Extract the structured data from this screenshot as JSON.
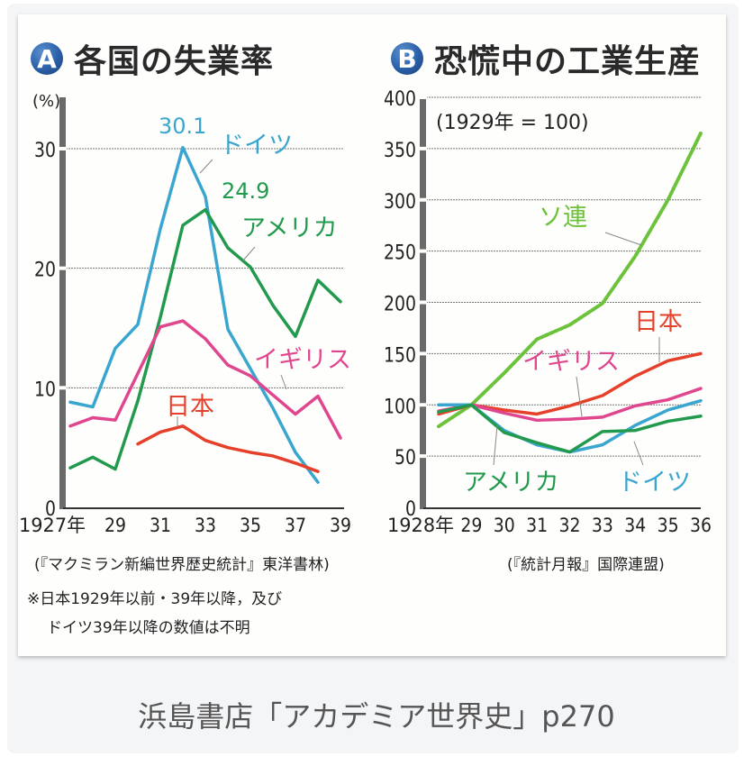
{
  "caption": "浜島書店「アカデミア世界史」p270",
  "chart_data": [
    {
      "id": "A",
      "type": "line",
      "badge": "A",
      "title": "各国の失業率",
      "ylabel": "(%)",
      "ylim": [
        0,
        33
      ],
      "yticks": [
        0,
        10,
        20,
        30
      ],
      "x": [
        1927,
        1928,
        1929,
        1930,
        1931,
        1932,
        1933,
        1934,
        1935,
        1936,
        1937,
        1938,
        1939
      ],
      "xlim": [
        1927,
        1939
      ],
      "xtick_labels": [
        {
          "x": 1927,
          "label": "1927年"
        },
        {
          "x": 1929,
          "label": "29"
        },
        {
          "x": 1931,
          "label": "31"
        },
        {
          "x": 1933,
          "label": "33"
        },
        {
          "x": 1935,
          "label": "35"
        },
        {
          "x": 1937,
          "label": "37"
        },
        {
          "x": 1939,
          "label": "39"
        }
      ],
      "grid": true,
      "series": [
        {
          "name": "ドイツ",
          "color": "#3aa6d0",
          "values": [
            8.8,
            8.4,
            13.3,
            15.3,
            23.3,
            30.1,
            26.0,
            14.9,
            11.6,
            8.3,
            4.6,
            2.1,
            null
          ]
        },
        {
          "name": "アメリカ",
          "color": "#229a4e",
          "values": [
            3.3,
            4.2,
            3.2,
            8.9,
            15.9,
            23.6,
            24.9,
            21.7,
            20.1,
            16.9,
            14.3,
            19.0,
            17.2
          ]
        },
        {
          "name": "イギリス",
          "color": "#e0468e",
          "values": [
            6.8,
            7.5,
            7.3,
            11.2,
            15.1,
            15.6,
            14.1,
            11.9,
            11.0,
            9.4,
            7.8,
            9.3,
            5.8
          ]
        },
        {
          "name": "日本",
          "color": "#e6402a",
          "values": [
            null,
            null,
            null,
            5.3,
            6.3,
            6.8,
            5.6,
            5.0,
            4.6,
            4.3,
            3.7,
            3.0,
            null
          ]
        }
      ],
      "annotations": [
        {
          "text": "30.1",
          "series": "ドイツ",
          "color": "#3aa6d0"
        },
        {
          "text": "24.9",
          "series": "アメリカ",
          "color": "#229a4e"
        }
      ],
      "source": "(『マクミラン新編世界歴史統計』東洋書林)",
      "notes": [
        "※日本1929年以前・39年以降，及び",
        "ドイツ39年以降の数値は不明"
      ]
    },
    {
      "id": "B",
      "type": "line",
      "badge": "B",
      "title": "恐慌中の工業生産",
      "subtitle": "(1929年 = 100)",
      "ylim": [
        0,
        400
      ],
      "yticks": [
        0,
        50,
        100,
        150,
        200,
        250,
        300,
        350,
        400
      ],
      "x": [
        1928,
        1929,
        1930,
        1931,
        1932,
        1933,
        1934,
        1935,
        1936
      ],
      "xlim": [
        1928,
        1936
      ],
      "xtick_labels": [
        {
          "x": 1928,
          "label": "1928年"
        },
        {
          "x": 1929,
          "label": "29"
        },
        {
          "x": 1930,
          "label": "30"
        },
        {
          "x": 1931,
          "label": "31"
        },
        {
          "x": 1932,
          "label": "32"
        },
        {
          "x": 1933,
          "label": "33"
        },
        {
          "x": 1934,
          "label": "34"
        },
        {
          "x": 1935,
          "label": "35"
        },
        {
          "x": 1936,
          "label": "36"
        }
      ],
      "grid": true,
      "series": [
        {
          "name": "ソ連",
          "color": "#6cc23a",
          "dashed": true,
          "values": [
            79,
            100,
            131,
            164,
            178,
            199,
            245,
            300,
            365
          ]
        },
        {
          "name": "日本",
          "color": "#e6402a",
          "values": [
            91,
            100,
            95,
            91,
            99,
            109,
            128,
            143,
            150
          ]
        },
        {
          "name": "イギリス",
          "color": "#e0468e",
          "values": [
            94,
            100,
            92,
            85,
            86,
            88,
            99,
            105,
            116
          ]
        },
        {
          "name": "ドイツ",
          "color": "#3aa6d0",
          "values": [
            100,
            100,
            75,
            61,
            54,
            61,
            80,
            95,
            104
          ]
        },
        {
          "name": "アメリカ",
          "color": "#229a4e",
          "values": [
            93,
            100,
            73,
            63,
            54,
            74,
            75,
            84,
            89
          ]
        }
      ],
      "source": "(『統計月報』国際連盟)"
    }
  ]
}
